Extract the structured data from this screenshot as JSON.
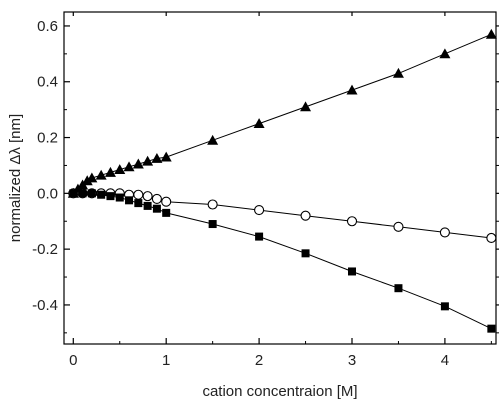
{
  "chart_data": {
    "type": "line",
    "xlabel": "cation concentraion [M]",
    "ylabel": "normalized Δλ [nm]",
    "xlim": [
      -0.1,
      4.55
    ],
    "ylim": [
      -0.54,
      0.65
    ],
    "xticks": [
      0,
      1,
      2,
      3,
      4
    ],
    "xtick_labels": [
      "0",
      "1",
      "2",
      "3",
      "4"
    ],
    "yticks": [
      -0.4,
      -0.2,
      0.0,
      0.2,
      0.4,
      0.6
    ],
    "ytick_labels": [
      "-0.4",
      "-0.2",
      "0.0",
      "0.2",
      "0.4",
      "0.6"
    ],
    "legend": "none",
    "grid": false,
    "series": [
      {
        "marker": "triangle-filled",
        "x": [
          0,
          0.05,
          0.1,
          0.15,
          0.2,
          0.3,
          0.4,
          0.5,
          0.6,
          0.7,
          0.8,
          0.9,
          1.0,
          1.5,
          2.0,
          2.5,
          3.0,
          3.5,
          4.0,
          4.5
        ],
        "y": [
          0.0,
          0.015,
          0.03,
          0.045,
          0.055,
          0.065,
          0.075,
          0.085,
          0.095,
          0.105,
          0.115,
          0.125,
          0.13,
          0.19,
          0.25,
          0.31,
          0.37,
          0.43,
          0.5,
          0.57
        ]
      },
      {
        "marker": "circle-open",
        "x": [
          0,
          0.1,
          0.2,
          0.3,
          0.4,
          0.5,
          0.6,
          0.7,
          0.8,
          0.9,
          1.0,
          1.5,
          2.0,
          2.5,
          3.0,
          3.5,
          4.0,
          4.5
        ],
        "y": [
          0.0,
          0.0,
          0.0,
          0.0,
          0.0,
          0.0,
          -0.005,
          -0.005,
          -0.01,
          -0.02,
          -0.03,
          -0.04,
          -0.06,
          -0.08,
          -0.1,
          -0.12,
          -0.14,
          -0.16
        ]
      },
      {
        "marker": "square-filled",
        "x": [
          0,
          0.1,
          0.2,
          0.3,
          0.4,
          0.5,
          0.6,
          0.7,
          0.8,
          0.9,
          1.0,
          1.5,
          2.0,
          2.5,
          3.0,
          3.5,
          4.0,
          4.5
        ],
        "y": [
          0.0,
          0.0,
          0.0,
          -0.005,
          -0.01,
          -0.015,
          -0.025,
          -0.035,
          -0.045,
          -0.055,
          -0.07,
          -0.11,
          -0.155,
          -0.215,
          -0.28,
          -0.34,
          -0.405,
          -0.485
        ]
      }
    ]
  }
}
